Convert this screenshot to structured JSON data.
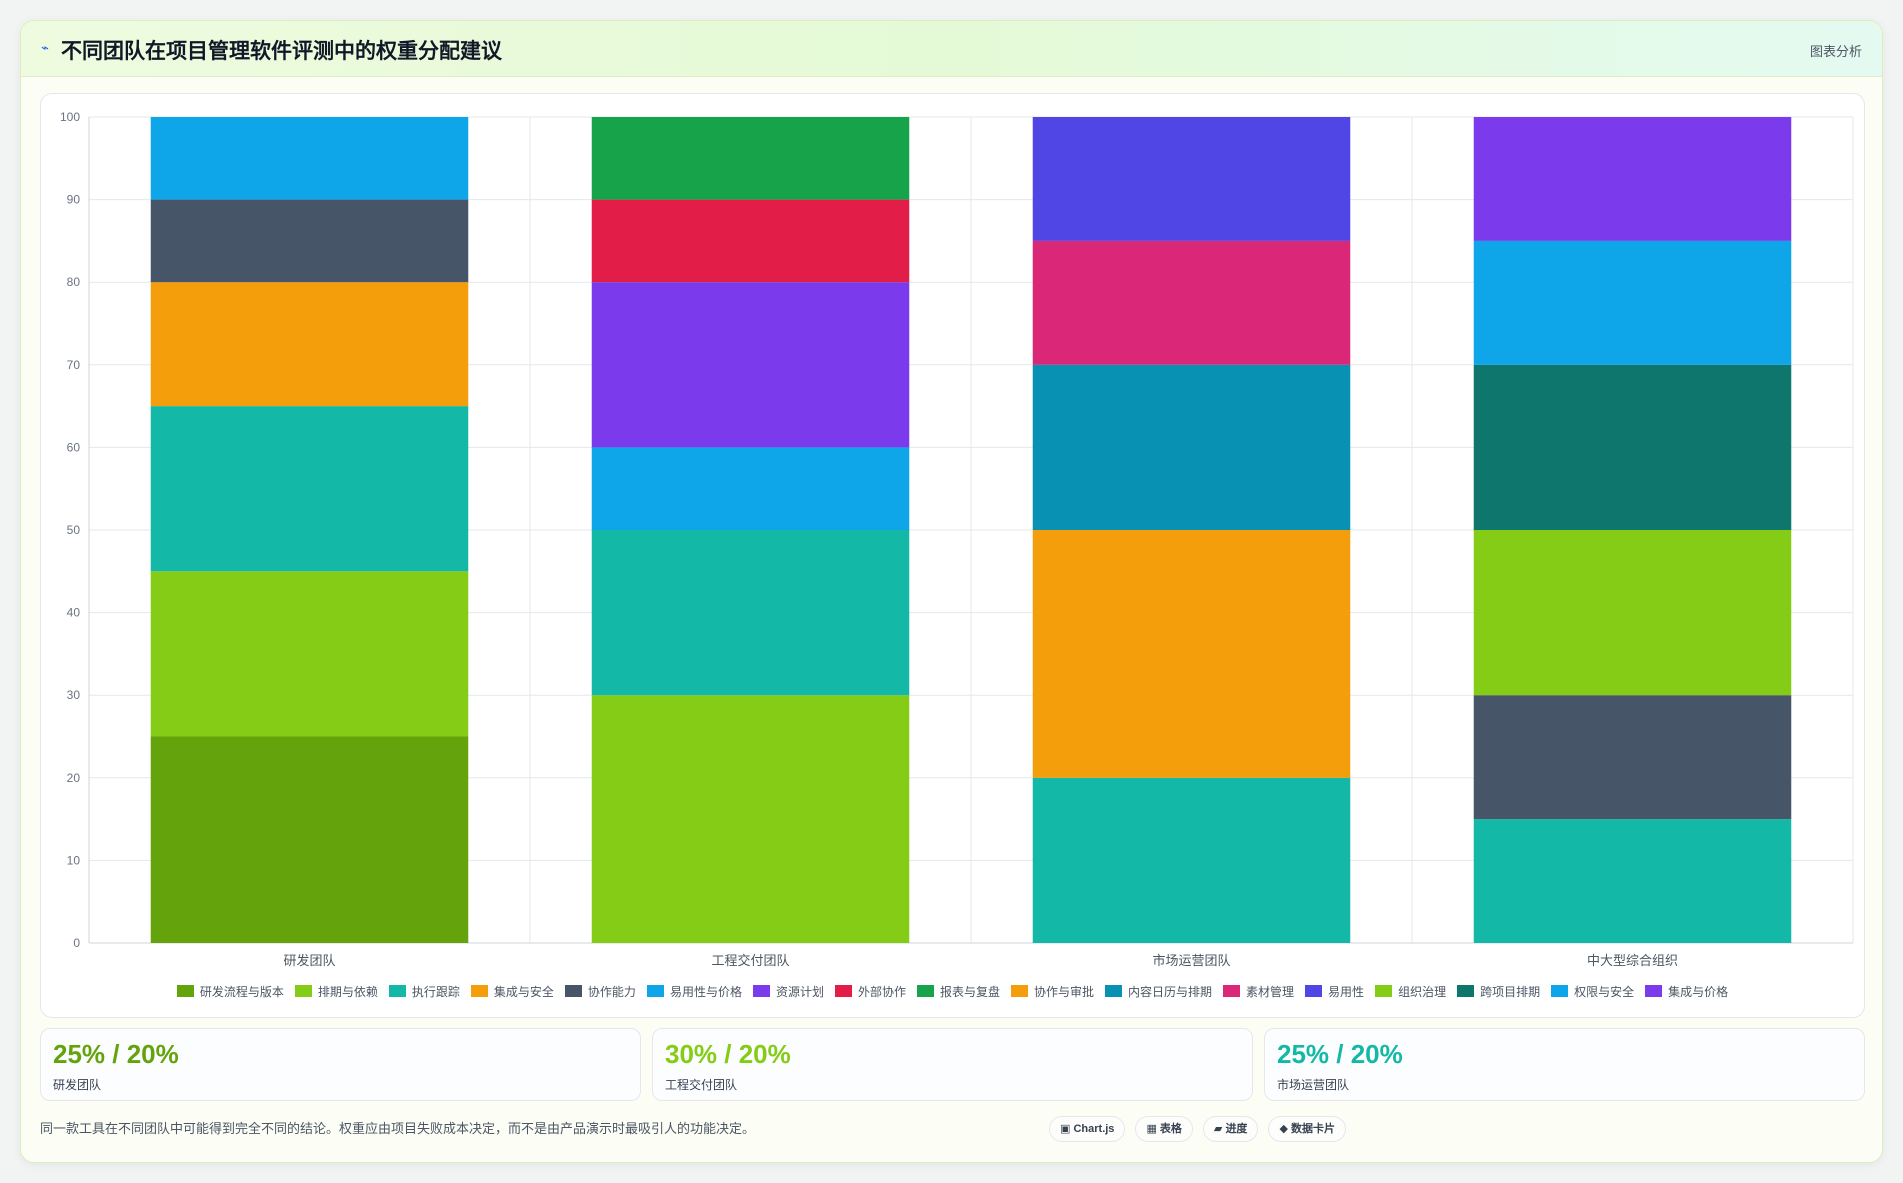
{
  "header": {
    "icon": "chart-icon",
    "title": "不同团队在项目管理软件评测中的权重分配建议",
    "right_label": "图表分析"
  },
  "chart_data": {
    "type": "bar",
    "stacked": true,
    "categories": [
      "研发团队",
      "工程交付团队",
      "市场运营团队",
      "中大型综合组织"
    ],
    "ylim": [
      0,
      100
    ],
    "yticks": [
      0,
      10,
      20,
      30,
      40,
      50,
      60,
      70,
      80,
      90,
      100
    ],
    "grid": true,
    "legend_position": "bottom",
    "series": [
      {
        "name": "研发流程与版本",
        "color": "#65a30d",
        "values": [
          25,
          0,
          0,
          0
        ]
      },
      {
        "name": "排期与依赖",
        "color": "#84cc16",
        "values": [
          20,
          30,
          0,
          0
        ]
      },
      {
        "name": "执行跟踪",
        "color": "#14b8a6",
        "values": [
          20,
          20,
          20,
          15
        ]
      },
      {
        "name": "集成与安全",
        "color": "#f59e0b",
        "values": [
          15,
          0,
          5,
          0
        ]
      },
      {
        "name": "协作能力",
        "color": "#475569",
        "values": [
          10,
          0,
          0,
          15
        ]
      },
      {
        "name": "易用性与价格",
        "color": "#0ea5e9",
        "values": [
          10,
          10,
          0,
          0
        ]
      },
      {
        "name": "资源计划",
        "color": "#7c3aed",
        "values": [
          0,
          20,
          0,
          0
        ]
      },
      {
        "name": "外部协作",
        "color": "#e11d48",
        "values": [
          0,
          10,
          0,
          0
        ]
      },
      {
        "name": "报表与复盘",
        "color": "#16a34a",
        "values": [
          0,
          10,
          0,
          0
        ]
      },
      {
        "name": "协作与审批",
        "color": "#f59e0b",
        "values": [
          0,
          0,
          25,
          0
        ]
      },
      {
        "name": "内容日历与排期",
        "color": "#0891b2",
        "values": [
          0,
          0,
          20,
          0
        ]
      },
      {
        "name": "素材管理",
        "color": "#db2777",
        "values": [
          0,
          0,
          15,
          0
        ]
      },
      {
        "name": "易用性",
        "color": "#4f46e5",
        "values": [
          0,
          0,
          15,
          0
        ]
      },
      {
        "name": "组织治理",
        "color": "#84cc16",
        "values": [
          0,
          0,
          0,
          20
        ]
      },
      {
        "name": "跨项目排期",
        "color": "#0f766e",
        "values": [
          0,
          0,
          0,
          20
        ]
      },
      {
        "name": "权限与安全",
        "color": "#0ea5e9",
        "values": [
          0,
          0,
          0,
          15
        ]
      },
      {
        "name": "集成与价格",
        "color": "#7c3aed",
        "values": [
          0,
          0,
          0,
          15
        ]
      }
    ]
  },
  "stats": [
    {
      "value": "25% / 20%",
      "label": "研发团队",
      "color": "#65a30d"
    },
    {
      "value": "30% / 20%",
      "label": "工程交付团队",
      "color": "#84cc16"
    },
    {
      "value": "25% / 20%",
      "label": "市场运营团队",
      "color": "#14b8a6"
    }
  ],
  "footnote": "同一款工具在不同团队中可能得到完全不同的结论。权重应由项目失败成本决定，而不是由产品演示时最吸引人的功能决定。",
  "tags": [
    {
      "icon": "chart-icon",
      "glyph": "▣",
      "label": "Chart.js"
    },
    {
      "icon": "table-icon",
      "glyph": "▦",
      "label": "表格"
    },
    {
      "icon": "progress-icon",
      "glyph": "▰",
      "label": "进度"
    },
    {
      "icon": "data-card-icon",
      "glyph": "◆",
      "label": "数据卡片"
    }
  ]
}
